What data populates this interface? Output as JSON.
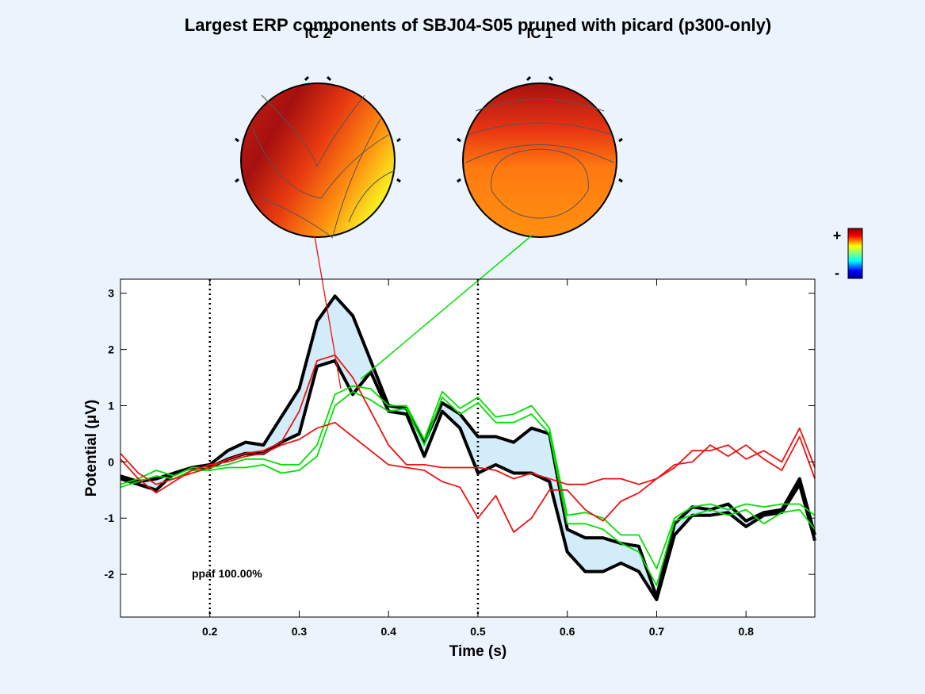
{
  "chart_data": {
    "type": "line",
    "title": "Largest ERP components of SBJ04-S05 pruned with picard (p300-only)",
    "xlabel": "Time (s)",
    "ylabel": "Potential (μV)",
    "x": [
      0.1,
      0.12,
      0.14,
      0.16,
      0.18,
      0.2,
      0.22,
      0.24,
      0.26,
      0.28,
      0.3,
      0.32,
      0.34,
      0.36,
      0.38,
      0.4,
      0.42,
      0.44,
      0.46,
      0.48,
      0.5,
      0.52,
      0.54,
      0.56,
      0.58,
      0.6,
      0.62,
      0.64,
      0.66,
      0.68,
      0.7,
      0.72,
      0.74,
      0.76,
      0.78,
      0.8,
      0.82,
      0.84,
      0.86,
      0.877
    ],
    "series": [
      {
        "color": "#000000",
        "fill": "#d2ecfa",
        "values": [
          -0.25,
          -0.35,
          -0.3,
          -0.2,
          -0.1,
          -0.05,
          0.2,
          0.35,
          0.3,
          0.8,
          1.3,
          2.5,
          2.95,
          2.6,
          1.8,
          1.0,
          0.95,
          0.35,
          1.05,
          0.85,
          0.45,
          0.45,
          0.35,
          0.6,
          0.5,
          -1.2,
          -1.35,
          -1.35,
          -1.45,
          -1.5,
          -2.4,
          -1.1,
          -0.8,
          -0.85,
          -0.75,
          -1.05,
          -0.9,
          -0.85,
          -0.3,
          -1.3
        ]
      },
      {
        "color": "#000000",
        "values": [
          -0.3,
          -0.4,
          -0.5,
          -0.2,
          -0.1,
          -0.1,
          0.05,
          0.15,
          0.15,
          0.35,
          0.5,
          1.7,
          1.8,
          1.2,
          1.6,
          0.9,
          0.85,
          0.1,
          0.9,
          0.6,
          -0.2,
          -0.05,
          -0.2,
          -0.2,
          -0.35,
          -1.6,
          -1.95,
          -1.95,
          -1.8,
          -1.95,
          -2.45,
          -1.3,
          -0.95,
          -0.95,
          -0.9,
          -1.15,
          -0.95,
          -0.9,
          -0.4,
          -1.4
        ]
      },
      {
        "color": "#00e000",
        "values": [
          -0.4,
          -0.3,
          -0.15,
          -0.25,
          -0.1,
          -0.1,
          -0.05,
          0.05,
          0.05,
          -0.05,
          -0.05,
          0.3,
          1.2,
          1.35,
          1.3,
          1.0,
          1.0,
          0.4,
          1.25,
          0.95,
          1.15,
          0.8,
          0.85,
          1.0,
          0.6,
          -0.95,
          -0.9,
          -1.0,
          -1.3,
          -1.3,
          -1.9,
          -1.0,
          -0.8,
          -0.75,
          -0.85,
          -0.75,
          -0.8,
          -0.75,
          -0.75,
          -0.95
        ]
      },
      {
        "color": "#00e000",
        "values": [
          -0.45,
          -0.35,
          -0.25,
          -0.3,
          -0.15,
          -0.15,
          -0.1,
          -0.1,
          -0.05,
          -0.2,
          -0.15,
          0.1,
          1.0,
          1.25,
          1.1,
          0.9,
          0.95,
          0.3,
          1.15,
          0.85,
          1.05,
          0.7,
          0.7,
          0.85,
          0.5,
          -1.1,
          -1.1,
          -1.2,
          -1.45,
          -1.6,
          -2.2,
          -1.05,
          -0.95,
          -0.85,
          -0.95,
          -0.85,
          -1.1,
          -0.9,
          -0.85,
          -1.2
        ]
      },
      {
        "color": "#ee1111",
        "values": [
          0.15,
          -0.2,
          -0.4,
          -0.3,
          -0.2,
          -0.1,
          0.05,
          0.15,
          0.2,
          0.35,
          0.9,
          1.8,
          1.9,
          1.5,
          0.9,
          0.3,
          -0.05,
          -0.05,
          -0.1,
          -0.1,
          -0.1,
          -0.15,
          -0.3,
          -0.2,
          -0.3,
          -0.4,
          -0.4,
          -0.3,
          -0.3,
          -0.4,
          -0.3,
          -0.1,
          0.2,
          0.2,
          0.3,
          0.05,
          0.2,
          0.0,
          0.6,
          -0.1
        ]
      },
      {
        "color": "#ee1111",
        "values": [
          0.05,
          -0.3,
          -0.55,
          -0.35,
          -0.15,
          -0.05,
          0.0,
          0.1,
          0.15,
          0.3,
          0.4,
          0.6,
          0.7,
          0.45,
          0.2,
          -0.05,
          -0.1,
          -0.15,
          -0.35,
          -0.45,
          -1.0,
          -0.6,
          -1.25,
          -1.0,
          -0.5,
          -0.5,
          -0.85,
          -1.05,
          -0.7,
          -0.55,
          -0.3,
          -0.05,
          0.0,
          0.3,
          0.1,
          0.3,
          0.05,
          -0.15,
          0.45,
          -0.3
        ]
      }
    ],
    "xlim": [
      0.1,
      0.877
    ],
    "xticks": [
      0.2,
      0.3,
      0.4,
      0.5,
      0.6,
      0.7,
      0.8
    ],
    "ylim": [
      -2.76,
      3.25
    ],
    "yticks": [
      -2,
      -1,
      0,
      1,
      2,
      3
    ],
    "vlines": [
      0.2,
      0.5
    ],
    "annotation": "ppaf 100.00%",
    "topo_labels": [
      "IC 2",
      "IC 1"
    ],
    "colorbar_labels": [
      "+",
      "-"
    ]
  }
}
